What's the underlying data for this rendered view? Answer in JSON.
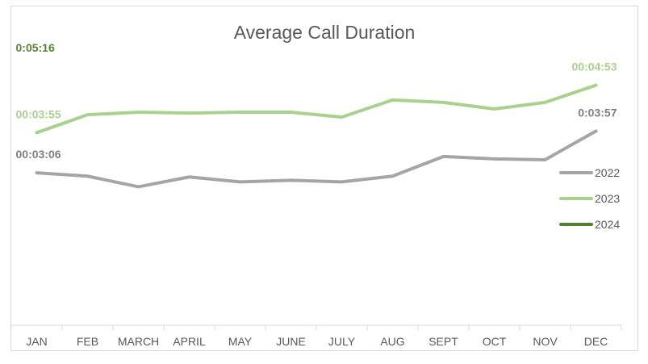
{
  "chart_data": {
    "type": "line",
    "title": "Average Call Duration",
    "categories": [
      "JAN",
      "FEB",
      "MARCH",
      "APRIL",
      "MAY",
      "JUNE",
      "JULY",
      "AUG",
      "SEPT",
      "OCT",
      "NOV",
      "DEC"
    ],
    "y_unit": "seconds",
    "ylim": [
      0,
      330
    ],
    "grid": false,
    "legend_position": "right",
    "series": [
      {
        "name": "2022",
        "color": "#a5a5a5",
        "values_seconds": [
          186,
          182,
          169,
          181,
          175,
          177,
          175,
          182,
          206,
          203,
          202,
          237
        ],
        "labels": [
          {
            "index": 0,
            "text": "00:03:06"
          },
          {
            "index": 11,
            "text": "0:03:57"
          }
        ]
      },
      {
        "name": "2023",
        "color": "#a9d18e",
        "values_seconds": [
          235,
          257,
          260,
          259,
          260,
          260,
          254,
          275,
          272,
          264,
          272,
          293
        ],
        "labels": [
          {
            "index": 0,
            "text": "00:03:55"
          },
          {
            "index": 11,
            "text": "00:04:53"
          }
        ]
      },
      {
        "name": "2024",
        "color": "#548235",
        "values_seconds": [
          316
        ],
        "labels": [
          {
            "index": 0,
            "text": "0:05:16"
          }
        ]
      }
    ]
  }
}
